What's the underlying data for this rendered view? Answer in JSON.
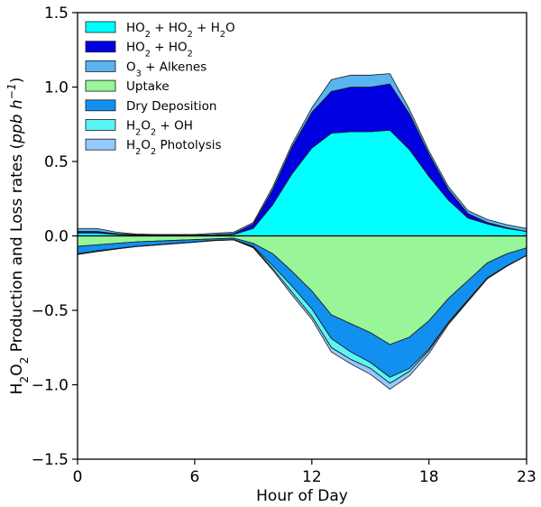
{
  "chart_data": {
    "type": "area",
    "xlabel": "Hour of Day",
    "ylabel_parts": [
      "H",
      "2",
      "O",
      "2",
      " Production and Loss rates (",
      "ppb h",
      "−1",
      ")"
    ],
    "xlim": [
      0,
      23
    ],
    "ylim": [
      -1.5,
      1.5
    ],
    "xticks": [
      0,
      6,
      12,
      18,
      23
    ],
    "yticks": [
      1.5,
      1.0,
      0.5,
      0.0,
      -0.5,
      -1.0,
      -1.5
    ],
    "ytick_labels": [
      "1.5",
      "1.0",
      "0.5",
      "0.0",
      "−0.5",
      "−1.0",
      "−1.5"
    ],
    "legend_position": "top-left",
    "x": [
      0,
      1,
      2,
      3,
      4,
      5,
      6,
      7,
      8,
      9,
      10,
      11,
      12,
      13,
      14,
      15,
      16,
      17,
      18,
      19,
      20,
      21,
      22,
      23
    ],
    "production": [
      {
        "name": "HO2 + HO2 + H2O",
        "name_parts": [
          "HO",
          "2",
          " + HO",
          "2",
          " + H",
          "2",
          "O"
        ],
        "color": "#00ffff",
        "values": [
          0.02,
          0.02,
          0.01,
          0.005,
          0.003,
          0.003,
          0.003,
          0.005,
          0.01,
          0.05,
          0.21,
          0.42,
          0.59,
          0.69,
          0.7,
          0.7,
          0.71,
          0.58,
          0.4,
          0.24,
          0.12,
          0.08,
          0.05,
          0.03
        ]
      },
      {
        "name": "HO2 + HO2",
        "name_parts": [
          "HO",
          "2",
          " + HO",
          "2"
        ],
        "color": "#0000e0",
        "values": [
          0.01,
          0.01,
          0.005,
          0.003,
          0.002,
          0.002,
          0.002,
          0.003,
          0.005,
          0.03,
          0.1,
          0.18,
          0.24,
          0.28,
          0.3,
          0.3,
          0.31,
          0.24,
          0.15,
          0.07,
          0.03,
          0.01,
          0.005,
          0.0
        ]
      },
      {
        "name": "O3 + Alkenes",
        "name_parts": [
          "O",
          "3",
          " + Alkenes"
        ],
        "color": "#5ab4f0",
        "values": [
          0.02,
          0.02,
          0.01,
          0.005,
          0.005,
          0.005,
          0.005,
          0.01,
          0.01,
          0.01,
          0.02,
          0.02,
          0.03,
          0.08,
          0.08,
          0.08,
          0.07,
          0.03,
          0.02,
          0.02,
          0.02,
          0.02,
          0.02,
          0.02
        ]
      }
    ],
    "loss": [
      {
        "name": "Uptake",
        "name_parts": [
          "Uptake"
        ],
        "color": "#98f598",
        "values": [
          0.07,
          0.06,
          0.05,
          0.04,
          0.035,
          0.03,
          0.025,
          0.02,
          0.015,
          0.05,
          0.12,
          0.24,
          0.37,
          0.53,
          0.59,
          0.65,
          0.73,
          0.68,
          0.57,
          0.42,
          0.3,
          0.18,
          0.12,
          0.08
        ]
      },
      {
        "name": "Dry Deposition",
        "name_parts": [
          "Dry Deposition"
        ],
        "color": "#1290f0",
        "values": [
          0.05,
          0.04,
          0.035,
          0.03,
          0.025,
          0.02,
          0.015,
          0.01,
          0.01,
          0.02,
          0.08,
          0.1,
          0.12,
          0.16,
          0.19,
          0.2,
          0.22,
          0.21,
          0.19,
          0.16,
          0.13,
          0.1,
          0.08,
          0.05
        ]
      },
      {
        "name": "H2O2 + OH",
        "name_parts": [
          "H",
          "2",
          "O",
          "2",
          " + OH"
        ],
        "color": "#5af5f5",
        "values": [
          0.005,
          0.005,
          0.003,
          0.002,
          0.002,
          0.002,
          0.002,
          0.002,
          0.002,
          0.005,
          0.02,
          0.04,
          0.05,
          0.06,
          0.05,
          0.04,
          0.04,
          0.02,
          0.01,
          0.005,
          0.005,
          0.005,
          0.003,
          0.002
        ]
      },
      {
        "name": "H2O2 Photolysis",
        "name_parts": [
          "H",
          "2",
          "O",
          "2",
          " Photolysis"
        ],
        "color": "#96c8ff",
        "values": [
          0.0,
          0.0,
          0.0,
          0.0,
          0.0,
          0.0,
          0.0,
          0.0,
          0.0,
          0.005,
          0.01,
          0.02,
          0.02,
          0.03,
          0.03,
          0.04,
          0.04,
          0.03,
          0.02,
          0.01,
          0.005,
          0.002,
          0.0,
          0.0
        ]
      }
    ]
  }
}
